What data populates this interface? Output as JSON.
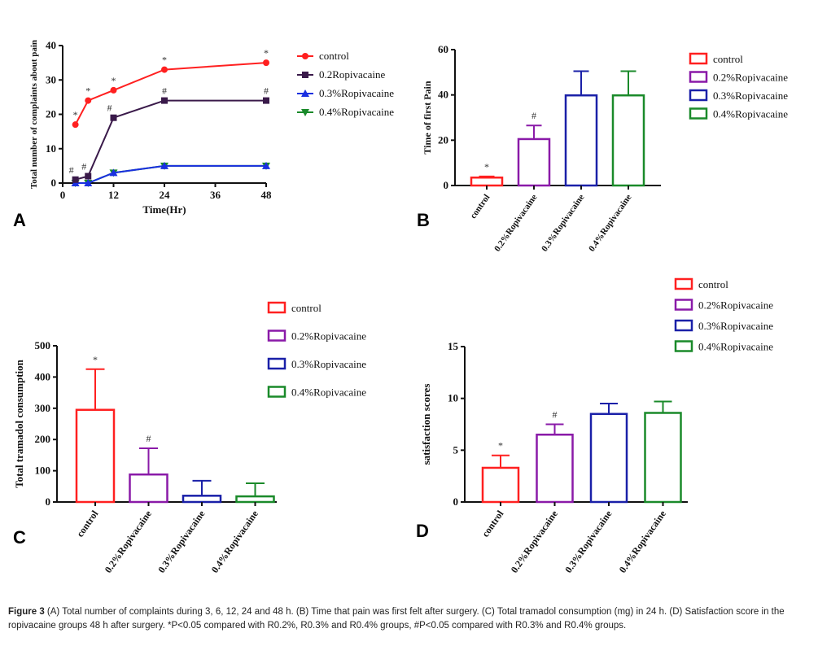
{
  "caption": {
    "label": "Figure 3",
    "text": " (A) Total number of complaints during 3, 6, 12, 24 and 48 h. (B) Time that pain was first felt after surgery. (C) Total tramadol consumption (mg) in 24 h. (D) Satisfaction score in the ropivacaine groups 48 h after surgery. *P<0.05 compared with R0.2%, R0.3% and R0.4% groups, #P<0.05 compared with R0.3% and R0.4% groups."
  },
  "chart_data": [
    {
      "panel": "A",
      "type": "line",
      "xlabel": "Time(Hr)",
      "ylabel": "Total number of complaints about pain",
      "xlim": [
        0,
        48
      ],
      "ylim": [
        0,
        40
      ],
      "xticks": [
        0,
        12,
        24,
        36,
        48
      ],
      "yticks": [
        0,
        10,
        20,
        30,
        40
      ],
      "x": [
        3,
        6,
        12,
        24,
        48
      ],
      "legend_position": "right",
      "series": [
        {
          "name": "control",
          "values": [
            17,
            24,
            27,
            33,
            35
          ],
          "color": "#ff2020",
          "marker": "circle",
          "annotations": [
            "*",
            "*",
            "*",
            "*",
            "*"
          ]
        },
        {
          "name": "0.2Ropivacaine",
          "values": [
            1,
            2,
            19,
            24,
            24
          ],
          "color": "#3a1a4a",
          "marker": "square",
          "annotations": [
            "#",
            "#",
            "#",
            "#",
            "#"
          ]
        },
        {
          "name": "0.3%Ropivacaine",
          "values": [
            0,
            0,
            3,
            5,
            5
          ],
          "color": "#1a30e0",
          "marker": "triangle-up",
          "annotations": []
        },
        {
          "name": "0.4%Ropivacaine",
          "values": [
            0,
            0,
            3,
            5,
            5
          ],
          "color": "#1a8a2a",
          "marker": "triangle-down",
          "annotations": []
        }
      ]
    },
    {
      "panel": "B",
      "type": "bar",
      "ylabel": "Time of first Pain",
      "ylim": [
        0,
        60
      ],
      "yticks": [
        0,
        20,
        40,
        60
      ],
      "categories": [
        "control",
        "0.2%Ropivacaine",
        "0.3%Ropivacaine",
        "0.4%Ropivacaine"
      ],
      "values": [
        3.5,
        20.5,
        39.8,
        39.8
      ],
      "error_upper": [
        4,
        26.5,
        50.5,
        50.5
      ],
      "annotations": [
        "*",
        "#",
        "",
        ""
      ],
      "colors": [
        "#ff2020",
        "#8a1aa8",
        "#1a20a8",
        "#1a8a2a"
      ],
      "legend": [
        "control",
        "0.2%Ropivacaine",
        "0.3%Ropivacaine",
        "0.4%Ropivacaine"
      ],
      "legend_position": "right"
    },
    {
      "panel": "C",
      "type": "bar",
      "ylabel": "Total tramadol consumption",
      "ylim": [
        0,
        500
      ],
      "yticks": [
        0,
        100,
        200,
        300,
        400,
        500
      ],
      "categories": [
        "control",
        "0.2%Ropivacaine",
        "0.3%Ropivacaine",
        "0.4%Ropivacaine"
      ],
      "values": [
        295,
        88,
        20,
        18
      ],
      "error_upper": [
        425,
        172,
        68,
        60
      ],
      "annotations": [
        "*",
        "#",
        "",
        ""
      ],
      "colors": [
        "#ff2020",
        "#8a1aa8",
        "#1a20a8",
        "#1a8a2a"
      ],
      "legend": [
        "control",
        "0.2%Ropivacaine",
        "0.3%Ropivacaine",
        "0.4%Ropivacaine"
      ],
      "legend_position": "top-right"
    },
    {
      "panel": "D",
      "type": "bar",
      "ylabel": "satisfaction scores",
      "ylim": [
        0,
        15
      ],
      "yticks": [
        0,
        5,
        10,
        15
      ],
      "categories": [
        "control",
        "0.2%Ropivacaine",
        "0.3%Ropivacaine",
        "0.4%Ropivacaine"
      ],
      "values": [
        3.3,
        6.5,
        8.5,
        8.6
      ],
      "error_upper": [
        4.5,
        7.5,
        9.5,
        9.7
      ],
      "annotations": [
        "*",
        "#",
        "",
        ""
      ],
      "colors": [
        "#ff2020",
        "#8a1aa8",
        "#1a20a8",
        "#1a8a2a"
      ],
      "legend": [
        "control",
        "0.2%Ropivacaine",
        "0.3%Ropivacaine",
        "0.4%Ropivacaine"
      ],
      "legend_position": "top-right"
    }
  ]
}
